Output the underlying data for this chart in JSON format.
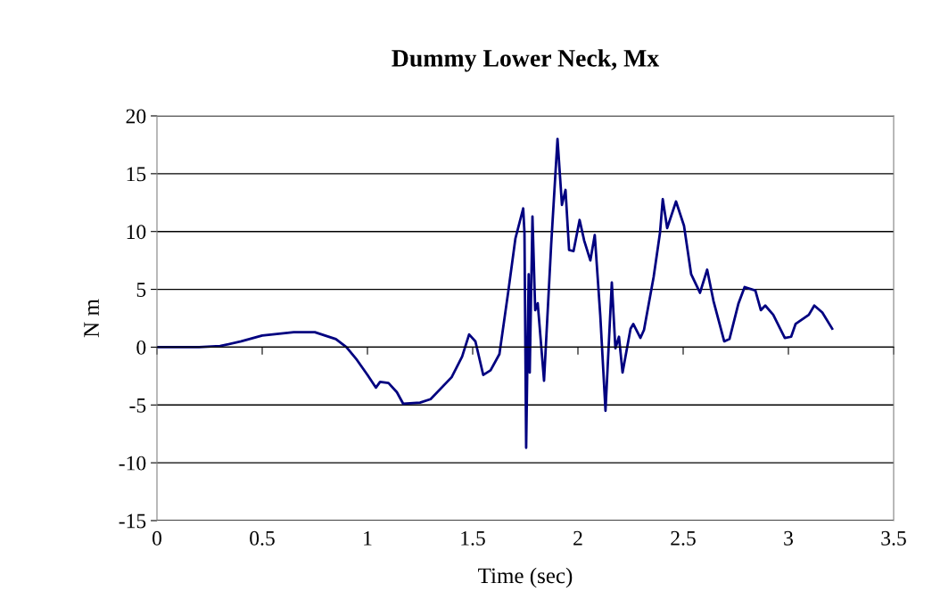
{
  "chart_data": {
    "type": "line",
    "title": "Dummy Lower Neck, Mx",
    "xlabel": "Time (sec)",
    "ylabel": "N m",
    "xlim": [
      0,
      3.5
    ],
    "ylim": [
      -15,
      20
    ],
    "xticks": [
      0,
      0.5,
      1,
      1.5,
      2,
      2.5,
      3,
      3.5
    ],
    "yticks": [
      -15,
      -10,
      -5,
      0,
      5,
      10,
      15,
      20
    ],
    "grid": "y",
    "marker": "none",
    "line_style": "solid",
    "series": [
      {
        "color": "#000080",
        "x": [
          0,
          0.1,
          0.2,
          0.3,
          0.4,
          0.5,
          0.65,
          0.75,
          0.85,
          0.9,
          0.95,
          1.0,
          1.04,
          1.06,
          1.1,
          1.14,
          1.17,
          1.25,
          1.3,
          1.4,
          1.45,
          1.483,
          1.513,
          1.55,
          1.585,
          1.627,
          1.669,
          1.703,
          1.74,
          1.746,
          1.754,
          1.766,
          1.771,
          1.784,
          1.797,
          1.809,
          1.839,
          1.873,
          1.903,
          1.924,
          1.941,
          1.958,
          1.979,
          2.008,
          2.03,
          2.059,
          2.08,
          2.106,
          2.131,
          2.161,
          2.178,
          2.195,
          2.212,
          2.25,
          2.263,
          2.297,
          2.314,
          2.36,
          2.39,
          2.403,
          2.424,
          2.466,
          2.504,
          2.538,
          2.58,
          2.614,
          2.644,
          2.695,
          2.72,
          2.763,
          2.792,
          2.843,
          2.869,
          2.89,
          2.928,
          2.983,
          3.013,
          3.034,
          3.097,
          3.123,
          3.161,
          3.208
        ],
        "values": [
          0,
          0,
          0,
          0.1,
          0.5,
          1.0,
          1.3,
          1.3,
          0.7,
          0,
          -1.1,
          -2.4,
          -3.5,
          -3.0,
          -3.1,
          -3.9,
          -4.9,
          -4.8,
          -4.5,
          -2.6,
          -0.8,
          1.1,
          0.5,
          -2.4,
          -2.0,
          -0.6,
          4.8,
          9.4,
          12.0,
          9.9,
          -8.7,
          6.3,
          -2.2,
          11.3,
          3.2,
          3.8,
          -2.9,
          8.9,
          18.0,
          12.3,
          13.6,
          8.4,
          8.3,
          11.0,
          9.2,
          7.5,
          9.7,
          2.8,
          -5.5,
          5.6,
          -0.1,
          0.9,
          -2.2,
          1.6,
          2.0,
          0.8,
          1.5,
          6.1,
          9.9,
          12.8,
          10.3,
          12.6,
          10.5,
          6.3,
          4.7,
          6.7,
          4.0,
          0.5,
          0.7,
          3.8,
          5.2,
          4.9,
          3.2,
          3.6,
          2.8,
          0.8,
          0.9,
          2.0,
          2.8,
          3.6,
          3.0,
          1.6
        ]
      }
    ]
  }
}
